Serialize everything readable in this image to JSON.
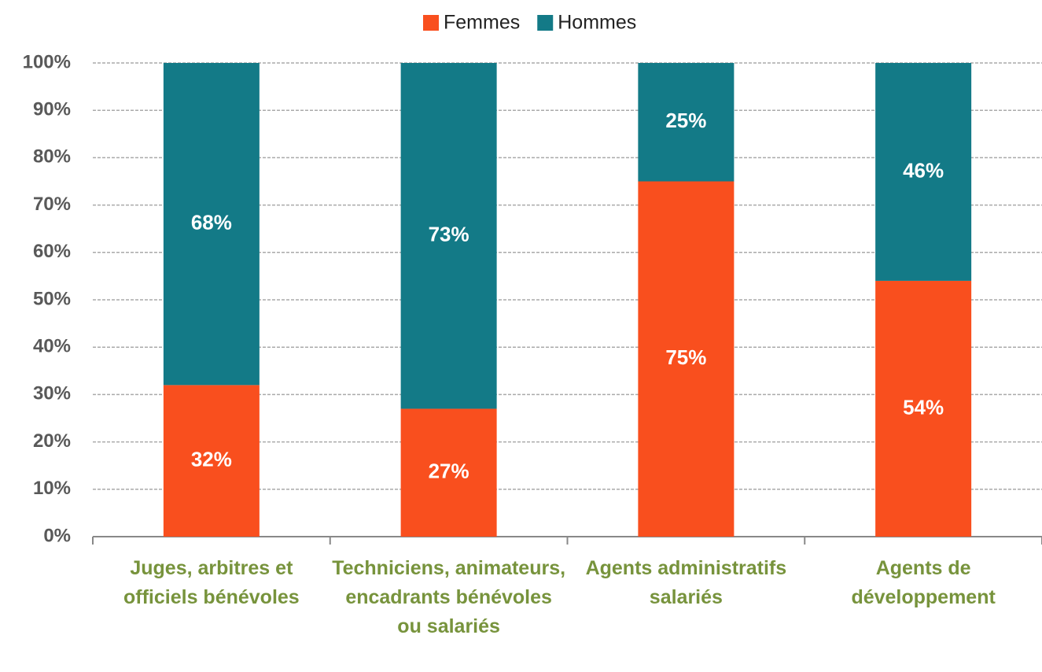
{
  "chart_data": {
    "type": "stacked_bar",
    "categories": [
      "Juges, arbitres et officiels bénévoles",
      "Techniciens, animateurs, encadrants bénévoles ou salariés",
      "Agents administratifs salariés",
      "Agents de développement"
    ],
    "series": [
      {
        "name": "Femmes",
        "color": "#f94f1e",
        "values": [
          32,
          27,
          75,
          54
        ],
        "value_labels": [
          "32%",
          "27%",
          "75%",
          "54%"
        ]
      },
      {
        "name": "Hommes",
        "color": "#137a87",
        "values": [
          68,
          73,
          25,
          46
        ],
        "value_labels": [
          "68%",
          "73%",
          "25%",
          "46%"
        ]
      }
    ],
    "ylim": [
      0,
      100
    ],
    "yticks": [
      {
        "value": 0,
        "label": "0%"
      },
      {
        "value": 10,
        "label": "10%"
      },
      {
        "value": 20,
        "label": "20%"
      },
      {
        "value": 30,
        "label": "30%"
      },
      {
        "value": 40,
        "label": "40%"
      },
      {
        "value": 50,
        "label": "50%"
      },
      {
        "value": 60,
        "label": "60%"
      },
      {
        "value": 70,
        "label": "70%"
      },
      {
        "value": 80,
        "label": "80%"
      },
      {
        "value": 90,
        "label": "90%"
      },
      {
        "value": 100,
        "label": "100%"
      }
    ],
    "grid": true,
    "legend": "top"
  }
}
